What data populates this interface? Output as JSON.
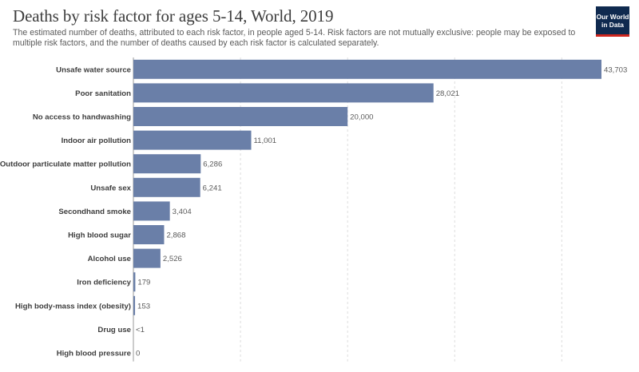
{
  "header": {
    "title": "Deaths by risk factor for ages 5-14, World, 2019",
    "subtitle": "The estimated number of deaths, attributed to each risk factor, in people aged 5-14. Risk factors are not mutually exclusive: people may be exposed to multiple risk factors, and the number of deaths caused by each risk factor is calculated separately.",
    "logo_line1": "Our World",
    "logo_line2": "in Data"
  },
  "colors": {
    "bar": "#6a7fa8",
    "grid": "#dddddd"
  },
  "chart_data": {
    "type": "bar",
    "orientation": "horizontal",
    "categories": [
      "Unsafe water source",
      "Poor sanitation",
      "No access to handwashing",
      "Indoor air pollution",
      "Outdoor particulate matter pollution",
      "Unsafe sex",
      "Secondhand smoke",
      "High blood sugar",
      "Alcohol use",
      "Iron deficiency",
      "High body-mass index (obesity)",
      "Drug use",
      "High blood pressure"
    ],
    "values": [
      43703,
      28021,
      20000,
      11001,
      6286,
      6241,
      3404,
      2868,
      2526,
      179,
      153,
      0.5,
      0
    ],
    "value_labels": [
      "43,703",
      "28,021",
      "20,000",
      "11,001",
      "6,286",
      "6,241",
      "3,404",
      "2,868",
      "2,526",
      "179",
      "153",
      "<1",
      "0"
    ],
    "xlim": [
      0,
      43703
    ],
    "grid": true,
    "gridlines": [
      10000,
      20000,
      30000,
      40000
    ]
  }
}
